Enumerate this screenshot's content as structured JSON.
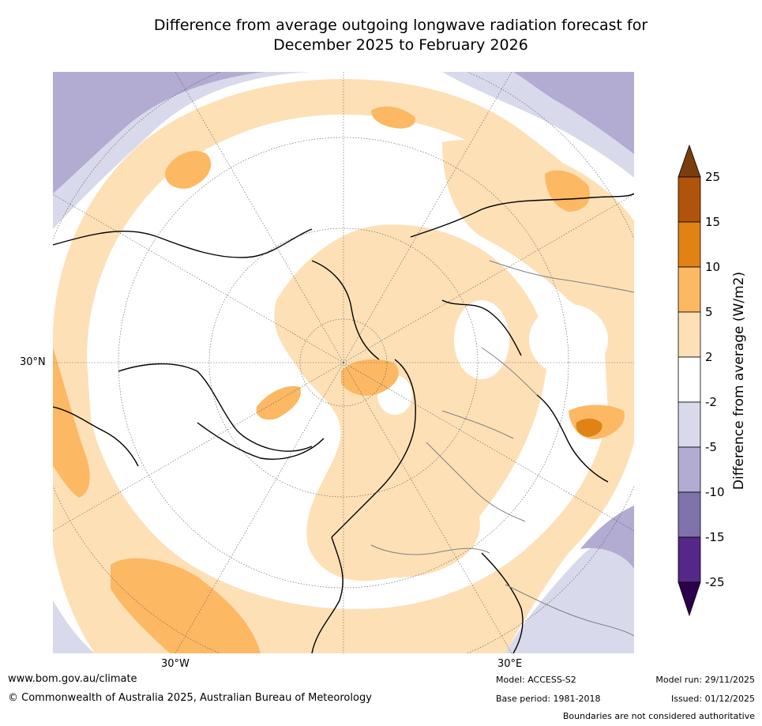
{
  "title": {
    "line1": "Difference from average outgoing longwave radiation forecast for",
    "line2": "December 2025 to February 2026"
  },
  "map": {
    "labels": {
      "lat_30n": "30°N",
      "lon_30w": "30°W",
      "lon_30e": "30°E"
    }
  },
  "colorbar": {
    "title": "Difference from average (W/m2)",
    "ticks": [
      "25",
      "15",
      "10",
      "5",
      "2",
      "-2",
      "-5",
      "-10",
      "-15",
      "-25"
    ],
    "colors": {
      "over": "#7a3d0c",
      "25": "#b0540b",
      "15": "#e08214",
      "10": "#fdb863",
      "5": "#fee0b6",
      "2": "#ffffff",
      "-2": "#d8daeb",
      "-5": "#b2abd2",
      "-10": "#8073ac",
      "-15": "#542788",
      "under": "#2d004b"
    }
  },
  "footer": {
    "website": "www.bom.gov.au/climate",
    "copyright": "© Commonwealth of Australia 2025, Australian Bureau of Meteorology",
    "model": "Model: ACCESS-S2",
    "base_period": "Base period: 1981-2018",
    "model_run": "Model run: 29/11/2025",
    "issued": "Issued: 01/12/2025",
    "disclaimer": "Boundaries are not considered authoritative"
  }
}
